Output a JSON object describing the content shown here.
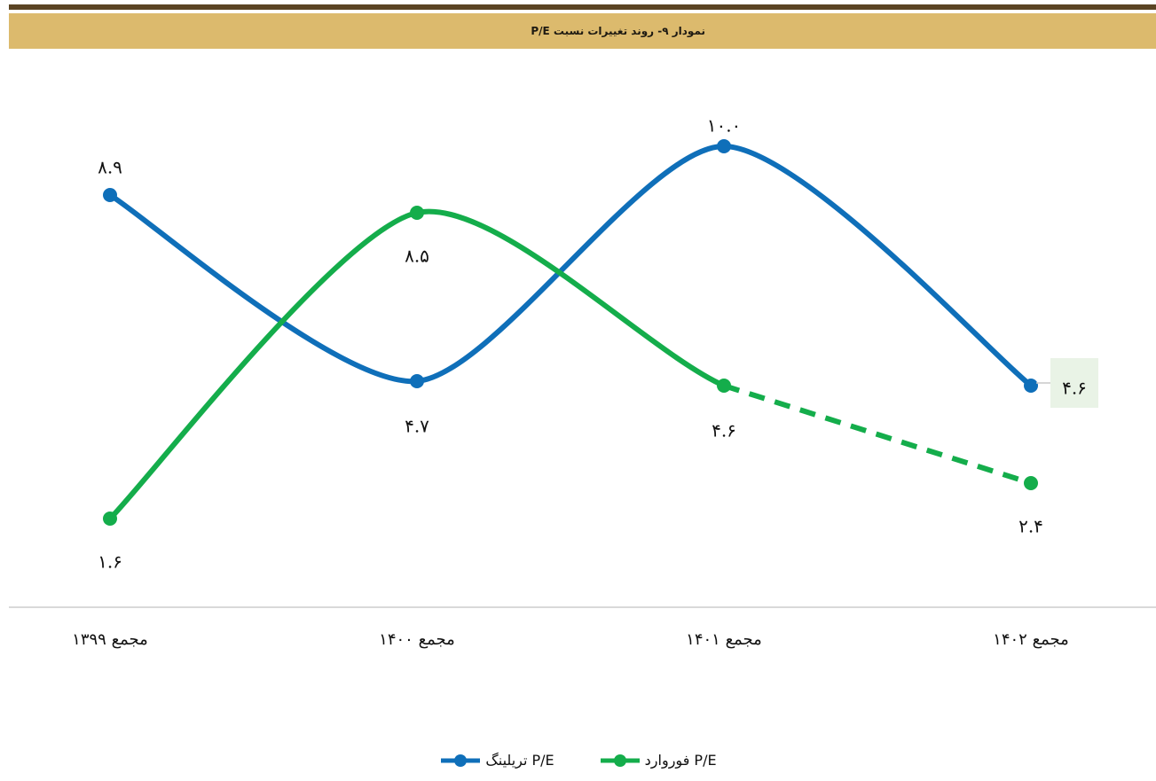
{
  "header": {
    "title": "نمودار ۹- روند تغییرات نسبت P/E"
  },
  "colors": {
    "trailing": "#0f6fb9",
    "forward": "#14ad4b",
    "title_bar": "#dcba6d",
    "top_rule": "#5b4423",
    "axis": "#d9d9d9",
    "highlight_box": "#e9f3e6"
  },
  "chart_data": {
    "type": "line",
    "title": "نمودار ۹- روند تغییرات نسبت P/E",
    "categories": [
      "مجمع ۱۳۹۹",
      "مجمع ۱۴۰۰",
      "مجمع ۱۴۰۱",
      "مجمع ۱۴۰۲"
    ],
    "series": [
      {
        "name": "P/E تریلینگ",
        "key": "trailing",
        "values": [
          8.9,
          4.7,
          10.0,
          4.6
        ],
        "labels": [
          "۸.۹",
          "۴.۷",
          "۱۰.۰",
          "۴.۶"
        ],
        "style": "solid"
      },
      {
        "name": "P/E فوروارد",
        "key": "forward",
        "values": [
          1.6,
          8.5,
          4.6,
          2.4
        ],
        "labels": [
          "۱.۶",
          "۸.۵",
          "۴.۶",
          "۲.۴"
        ],
        "style": "solid-then-dashed-last-segment"
      }
    ],
    "ylim": [
      -0.4,
      12.1
    ],
    "grid": false,
    "legend": "bottom-center",
    "highlighted_label": "trailing-last"
  }
}
